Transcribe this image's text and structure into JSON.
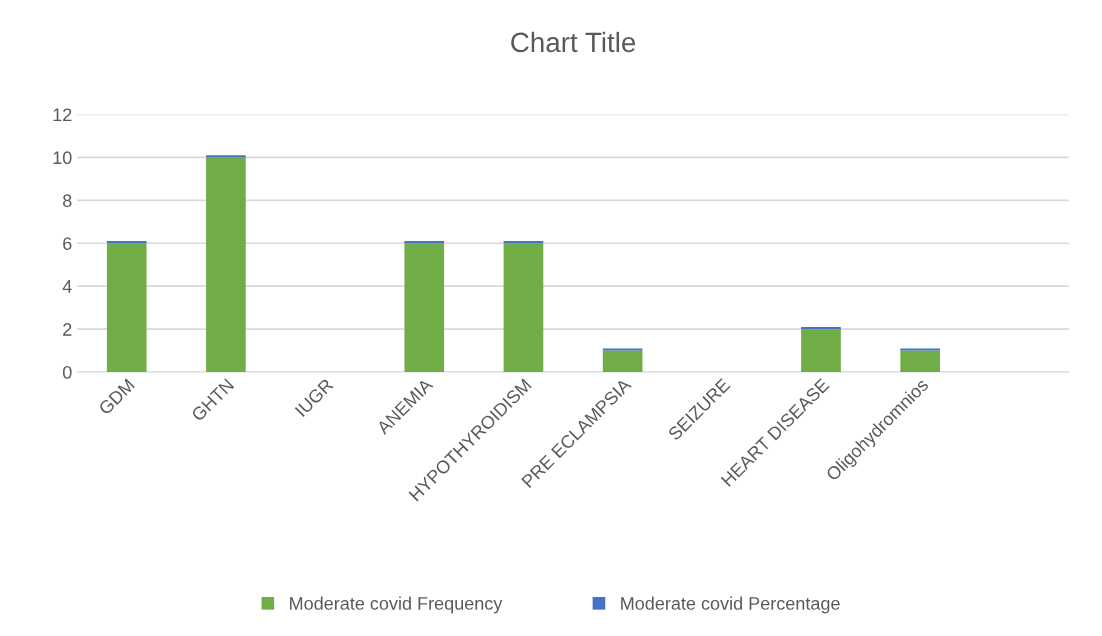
{
  "chart_data": {
    "type": "bar",
    "title": "Chart Title",
    "stacked": true,
    "categories": [
      "GDM",
      "GHTN",
      "IUGR",
      "ANEMIA",
      "HYPOTHYROIDISM",
      "PRE ECLAMPSIA",
      "SEIZURE",
      "HEART DISEASE",
      "Oligohydromnios",
      null
    ],
    "series": [
      {
        "name": "Moderate covid Frequency",
        "color": "#70ad47",
        "values": [
          6,
          10,
          0,
          6,
          6,
          1,
          0,
          2,
          1,
          null
        ]
      },
      {
        "name": "Moderate covid Percentage",
        "color": "#4472c4",
        "values": [
          0.1,
          0.1,
          0,
          0.1,
          0.1,
          0.1,
          0,
          0.1,
          0.1,
          null
        ]
      }
    ],
    "ylim": [
      0,
      12
    ],
    "yticks": [
      0,
      2,
      4,
      6,
      8,
      10,
      12
    ],
    "grid": "y",
    "legend": "bottom"
  }
}
